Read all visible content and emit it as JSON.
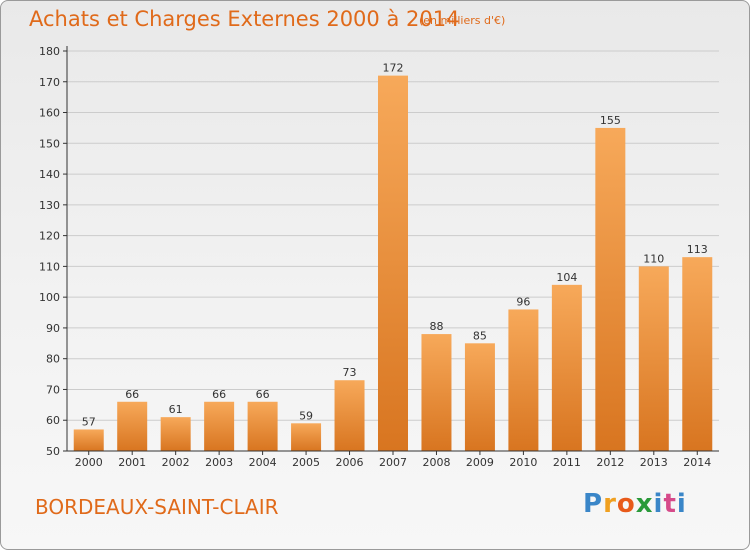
{
  "header": {
    "title": "Achats et Charges Externes 2000 à 2014",
    "subtitle": "(en milliers d'€)"
  },
  "footer": {
    "place": "BORDEAUX-SAINT-CLAIR",
    "logo_text": "Proxiti",
    "logo_letters": [
      "P",
      "r",
      "o",
      "x",
      "i",
      "t",
      "i"
    ],
    "logo_colors": [
      "#3a86c8",
      "#f0a020",
      "#e85a1a",
      "#2a9a3a",
      "#3a86c8",
      "#d64a8a",
      "#3a86c8"
    ]
  },
  "colors": {
    "bar_light": "#f7a95a",
    "bar_dark": "#d87520",
    "accent": "#e06a1a",
    "axis": "#333333",
    "grid": "#cccccc"
  },
  "chart_data": {
    "type": "bar",
    "title": "Achats et Charges Externes 2000 à 2014",
    "subtitle": "(en milliers d'€)",
    "categories": [
      "2000",
      "2001",
      "2002",
      "2003",
      "2004",
      "2005",
      "2006",
      "2007",
      "2008",
      "2009",
      "2010",
      "2011",
      "2012",
      "2013",
      "2014"
    ],
    "values": [
      57,
      66,
      61,
      66,
      66,
      59,
      73,
      172,
      88,
      85,
      96,
      104,
      155,
      110,
      113
    ],
    "ylim": [
      50,
      180
    ],
    "yticks": [
      50,
      60,
      70,
      80,
      90,
      100,
      110,
      120,
      130,
      140,
      150,
      160,
      170,
      180
    ],
    "grid": true,
    "xlabel": "",
    "ylabel": ""
  }
}
